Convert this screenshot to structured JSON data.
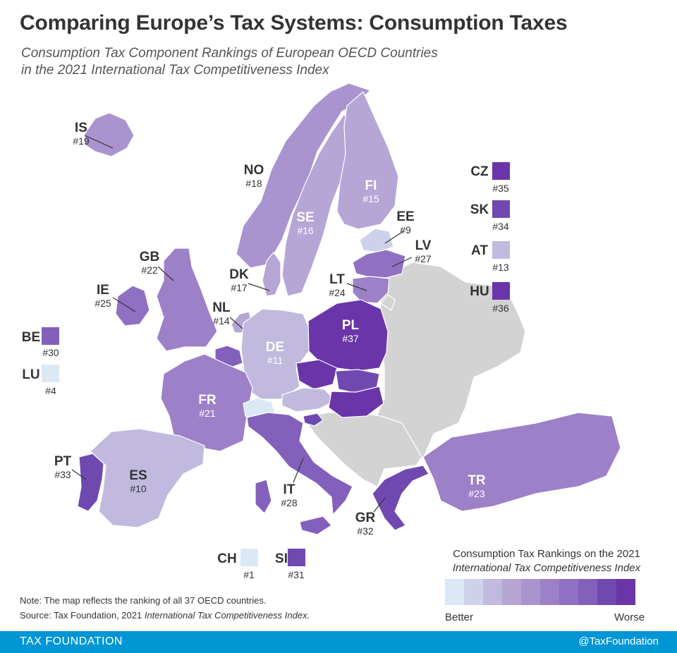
{
  "header": {
    "title": "Comparing Europe’s Tax Systems: Consumption Taxes",
    "subtitle_line1": "Consumption Tax Component Rankings of European OECD Countries",
    "subtitle_line2": "in the 2021 International Tax Competitiveness Index"
  },
  "colors": {
    "non_oecd": "#d3d3d3",
    "border": "#ffffff",
    "leader": "#333333",
    "footer": "#0096d6",
    "scale": [
      "#dbe9f5",
      "#cdd2ea",
      "#c1bade",
      "#b5a6d6",
      "#a994cf",
      "#9c80c8",
      "#9070c2",
      "#8260bb",
      "#7049b0",
      "#6a35a8"
    ]
  },
  "countries": [
    {
      "code": "IS",
      "rank": "#19",
      "rank_value": 19,
      "name": "Iceland",
      "color": "#a994cf"
    },
    {
      "code": "NO",
      "rank": "#18",
      "rank_value": 18,
      "name": "Norway",
      "color": "#a994cf"
    },
    {
      "code": "SE",
      "rank": "#16",
      "rank_value": 16,
      "name": "Sweden",
      "color": "#b5a6d6"
    },
    {
      "code": "FI",
      "rank": "#15",
      "rank_value": 15,
      "name": "Finland",
      "color": "#b5a6d6"
    },
    {
      "code": "EE",
      "rank": "#9",
      "rank_value": 9,
      "name": "Estonia",
      "color": "#cdd2ea"
    },
    {
      "code": "LV",
      "rank": "#27",
      "rank_value": 27,
      "name": "Latvia",
      "color": "#9070c2"
    },
    {
      "code": "LT",
      "rank": "#24",
      "rank_value": 24,
      "name": "Lithuania",
      "color": "#9c80c8"
    },
    {
      "code": "GB",
      "rank": "#22",
      "rank_value": 22,
      "name": "United Kingdom",
      "color": "#9c80c8"
    },
    {
      "code": "IE",
      "rank": "#25",
      "rank_value": 25,
      "name": "Ireland",
      "color": "#9070c2"
    },
    {
      "code": "DK",
      "rank": "#17",
      "rank_value": 17,
      "name": "Denmark",
      "color": "#b5a6d6"
    },
    {
      "code": "NL",
      "rank": "#14",
      "rank_value": 14,
      "name": "Netherlands",
      "color": "#b5a6d6"
    },
    {
      "code": "BE",
      "rank": "#30",
      "rank_value": 30,
      "name": "Belgium",
      "color": "#8260bb"
    },
    {
      "code": "LU",
      "rank": "#4",
      "rank_value": 4,
      "name": "Luxembourg",
      "color": "#dbe9f5"
    },
    {
      "code": "DE",
      "rank": "#11",
      "rank_value": 11,
      "name": "Germany",
      "color": "#c1bade"
    },
    {
      "code": "PL",
      "rank": "#37",
      "rank_value": 37,
      "name": "Poland",
      "color": "#6a35a8"
    },
    {
      "code": "CZ",
      "rank": "#35",
      "rank_value": 35,
      "name": "Czech Republic",
      "color": "#6a35a8"
    },
    {
      "code": "SK",
      "rank": "#34",
      "rank_value": 34,
      "name": "Slovakia",
      "color": "#7049b0"
    },
    {
      "code": "AT",
      "rank": "#13",
      "rank_value": 13,
      "name": "Austria",
      "color": "#c1bade"
    },
    {
      "code": "HU",
      "rank": "#36",
      "rank_value": 36,
      "name": "Hungary",
      "color": "#6a35a8"
    },
    {
      "code": "FR",
      "rank": "#21",
      "rank_value": 21,
      "name": "France",
      "color": "#9c80c8"
    },
    {
      "code": "CH",
      "rank": "#1",
      "rank_value": 1,
      "name": "Switzerland",
      "color": "#dbe9f5"
    },
    {
      "code": "SI",
      "rank": "#31",
      "rank_value": 31,
      "name": "Slovenia",
      "color": "#7049b0"
    },
    {
      "code": "IT",
      "rank": "#28",
      "rank_value": 28,
      "name": "Italy",
      "color": "#8260bb"
    },
    {
      "code": "PT",
      "rank": "#33",
      "rank_value": 33,
      "name": "Portugal",
      "color": "#7049b0"
    },
    {
      "code": "ES",
      "rank": "#10",
      "rank_value": 10,
      "name": "Spain",
      "color": "#c1bade"
    },
    {
      "code": "GR",
      "rank": "#32",
      "rank_value": 32,
      "name": "Greece",
      "color": "#7049b0"
    },
    {
      "code": "TR",
      "rank": "#23",
      "rank_value": 23,
      "name": "Turkey",
      "color": "#9c80c8"
    }
  ],
  "legend": {
    "title_line1": "Consumption Tax Rankings on the 2021",
    "title_line2": "International Tax Competitiveness Index",
    "better": "Better",
    "worse": "Worse"
  },
  "note": {
    "line1": "Note: The map reflects the ranking of all 37 OECD countries.",
    "source_prefix": "Source: Tax Foundation, 2021 ",
    "source_italic": "International Tax Competitiveness Index."
  },
  "footer": {
    "left": "TAX FOUNDATION",
    "right": "@TaxFoundation"
  }
}
